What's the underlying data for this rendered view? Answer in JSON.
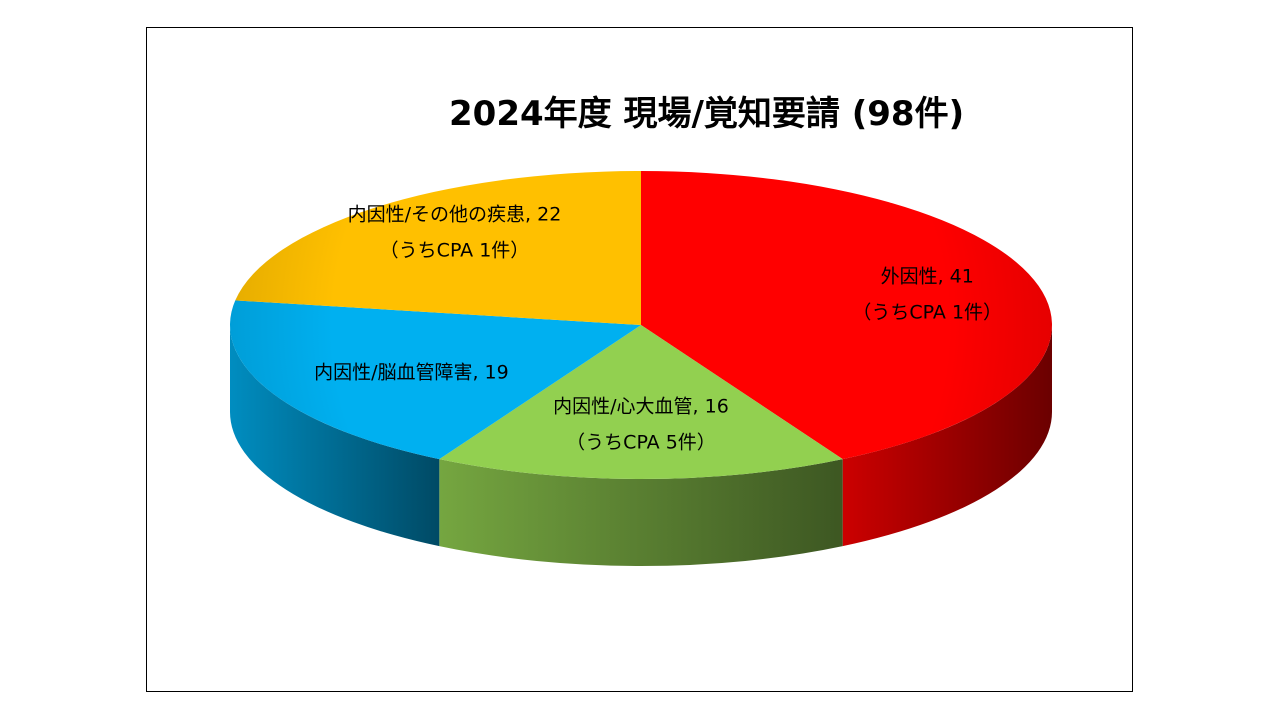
{
  "chart_data": {
    "type": "pie",
    "title": "2024年度 現場/覚知要請 (98件)",
    "total": 98,
    "slices": [
      {
        "name": "外因性",
        "value": 41,
        "label_line1": "外因性, 41",
        "label_line2": "（うちCPA 1件）",
        "color": "#ff0000"
      },
      {
        "name": "内因性/心大血管",
        "value": 16,
        "label_line1": "内因性/心大血管, 16",
        "label_line2": "（うちCPA 5件）",
        "color": "#92d050"
      },
      {
        "name": "内因性/脳血管障害",
        "value": 19,
        "label_line1": "内因性/脳血管障害, 19",
        "label_line2": "",
        "color": "#00b0f0"
      },
      {
        "name": "内因性/その他の疾患",
        "value": 22,
        "label_line1": "内因性/その他の疾患, 22",
        "label_line2": "（うちCPA 1件）",
        "color": "#ffc000"
      }
    ],
    "style": "3d"
  }
}
